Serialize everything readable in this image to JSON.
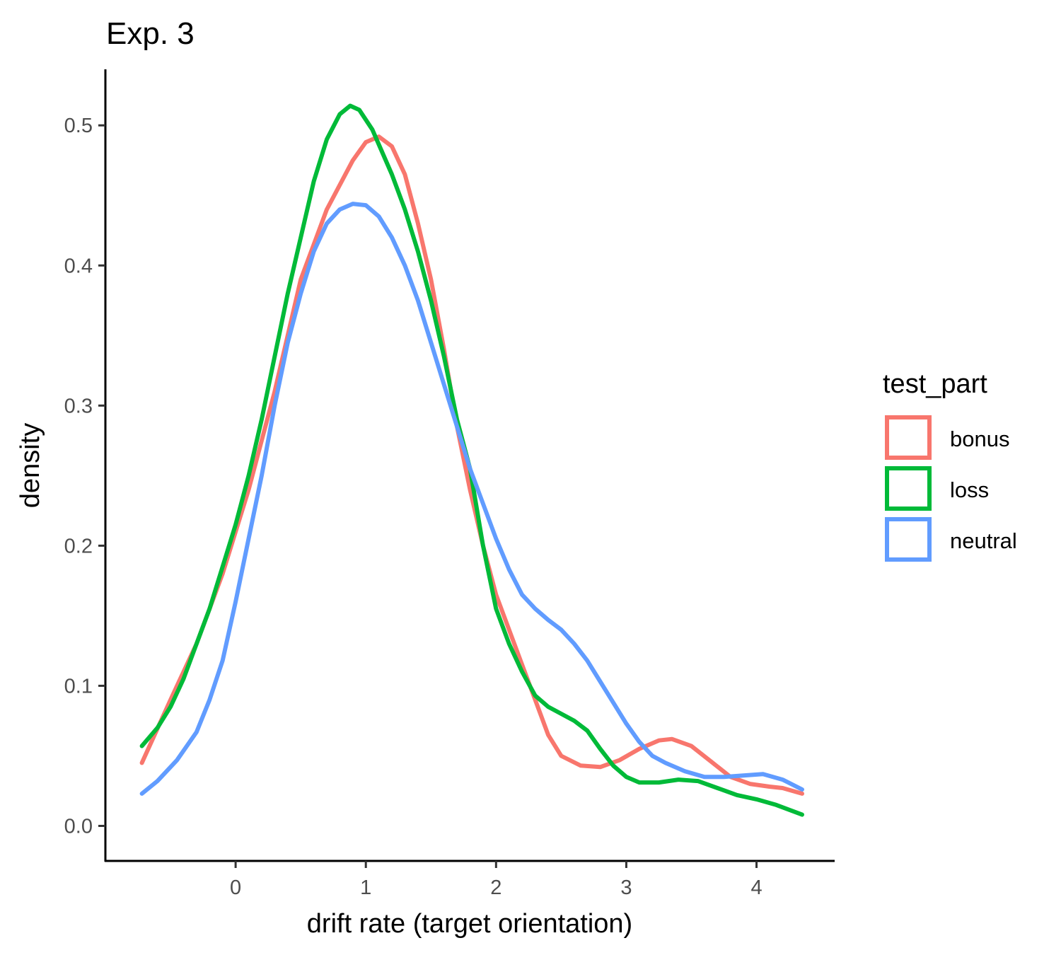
{
  "chart_data": {
    "type": "line",
    "title": "Exp. 3",
    "xlabel": "drift rate (target orientation)",
    "ylabel": "density",
    "xlim": [
      -1.0,
      4.6
    ],
    "ylim": [
      -0.025,
      0.54
    ],
    "x_ticks": [
      0,
      1,
      2,
      3,
      4
    ],
    "x_tick_labels": [
      "0",
      "1",
      "2",
      "3",
      "4"
    ],
    "y_ticks": [
      0.0,
      0.1,
      0.2,
      0.3,
      0.4,
      0.5
    ],
    "y_tick_labels": [
      "0.0",
      "0.1",
      "0.2",
      "0.3",
      "0.4",
      "0.5"
    ],
    "grid": false,
    "legend": {
      "title": "test_part",
      "position": "right"
    },
    "series": [
      {
        "name": "bonus",
        "color": "#F8766D",
        "points": [
          [
            -0.72,
            0.045
          ],
          [
            -0.5,
            0.09
          ],
          [
            -0.3,
            0.13
          ],
          [
            -0.1,
            0.18
          ],
          [
            0.1,
            0.24
          ],
          [
            0.3,
            0.31
          ],
          [
            0.5,
            0.39
          ],
          [
            0.7,
            0.44
          ],
          [
            0.9,
            0.475
          ],
          [
            1.0,
            0.488
          ],
          [
            1.1,
            0.492
          ],
          [
            1.2,
            0.485
          ],
          [
            1.3,
            0.465
          ],
          [
            1.4,
            0.43
          ],
          [
            1.5,
            0.39
          ],
          [
            1.6,
            0.34
          ],
          [
            1.7,
            0.285
          ],
          [
            1.8,
            0.24
          ],
          [
            1.9,
            0.2
          ],
          [
            2.0,
            0.165
          ],
          [
            2.1,
            0.14
          ],
          [
            2.2,
            0.115
          ],
          [
            2.3,
            0.09
          ],
          [
            2.4,
            0.065
          ],
          [
            2.5,
            0.05
          ],
          [
            2.65,
            0.043
          ],
          [
            2.8,
            0.042
          ],
          [
            2.95,
            0.047
          ],
          [
            3.1,
            0.055
          ],
          [
            3.25,
            0.061
          ],
          [
            3.35,
            0.062
          ],
          [
            3.5,
            0.057
          ],
          [
            3.65,
            0.046
          ],
          [
            3.8,
            0.035
          ],
          [
            3.95,
            0.03
          ],
          [
            4.1,
            0.028
          ],
          [
            4.2,
            0.027
          ],
          [
            4.35,
            0.023
          ]
        ]
      },
      {
        "name": "loss",
        "color": "#00BA38",
        "points": [
          [
            -0.72,
            0.057
          ],
          [
            -0.6,
            0.07
          ],
          [
            -0.5,
            0.085
          ],
          [
            -0.4,
            0.105
          ],
          [
            -0.3,
            0.13
          ],
          [
            -0.2,
            0.155
          ],
          [
            -0.1,
            0.185
          ],
          [
            0.0,
            0.215
          ],
          [
            0.1,
            0.25
          ],
          [
            0.2,
            0.29
          ],
          [
            0.3,
            0.335
          ],
          [
            0.4,
            0.38
          ],
          [
            0.5,
            0.42
          ],
          [
            0.6,
            0.46
          ],
          [
            0.7,
            0.49
          ],
          [
            0.8,
            0.508
          ],
          [
            0.88,
            0.514
          ],
          [
            0.95,
            0.511
          ],
          [
            1.05,
            0.497
          ],
          [
            1.2,
            0.465
          ],
          [
            1.3,
            0.44
          ],
          [
            1.4,
            0.41
          ],
          [
            1.5,
            0.375
          ],
          [
            1.6,
            0.335
          ],
          [
            1.7,
            0.29
          ],
          [
            1.8,
            0.255
          ],
          [
            1.9,
            0.2
          ],
          [
            2.0,
            0.155
          ],
          [
            2.1,
            0.13
          ],
          [
            2.2,
            0.11
          ],
          [
            2.3,
            0.093
          ],
          [
            2.4,
            0.085
          ],
          [
            2.5,
            0.08
          ],
          [
            2.6,
            0.075
          ],
          [
            2.7,
            0.068
          ],
          [
            2.8,
            0.055
          ],
          [
            2.9,
            0.043
          ],
          [
            3.0,
            0.035
          ],
          [
            3.1,
            0.031
          ],
          [
            3.25,
            0.031
          ],
          [
            3.4,
            0.033
          ],
          [
            3.55,
            0.032
          ],
          [
            3.7,
            0.027
          ],
          [
            3.85,
            0.022
          ],
          [
            4.0,
            0.019
          ],
          [
            4.15,
            0.015
          ],
          [
            4.35,
            0.008
          ]
        ]
      },
      {
        "name": "neutral",
        "color": "#619CFF",
        "points": [
          [
            -0.72,
            0.023
          ],
          [
            -0.6,
            0.032
          ],
          [
            -0.45,
            0.047
          ],
          [
            -0.3,
            0.067
          ],
          [
            -0.2,
            0.09
          ],
          [
            -0.1,
            0.118
          ],
          [
            0.0,
            0.16
          ],
          [
            0.1,
            0.205
          ],
          [
            0.2,
            0.25
          ],
          [
            0.3,
            0.3
          ],
          [
            0.4,
            0.345
          ],
          [
            0.5,
            0.38
          ],
          [
            0.6,
            0.41
          ],
          [
            0.7,
            0.43
          ],
          [
            0.8,
            0.44
          ],
          [
            0.9,
            0.444
          ],
          [
            1.0,
            0.443
          ],
          [
            1.1,
            0.435
          ],
          [
            1.2,
            0.42
          ],
          [
            1.3,
            0.4
          ],
          [
            1.4,
            0.375
          ],
          [
            1.5,
            0.345
          ],
          [
            1.6,
            0.315
          ],
          [
            1.7,
            0.285
          ],
          [
            1.8,
            0.255
          ],
          [
            1.9,
            0.23
          ],
          [
            2.0,
            0.205
          ],
          [
            2.1,
            0.183
          ],
          [
            2.2,
            0.165
          ],
          [
            2.3,
            0.155
          ],
          [
            2.4,
            0.147
          ],
          [
            2.5,
            0.14
          ],
          [
            2.6,
            0.13
          ],
          [
            2.7,
            0.118
          ],
          [
            2.8,
            0.103
          ],
          [
            2.9,
            0.088
          ],
          [
            3.0,
            0.073
          ],
          [
            3.1,
            0.06
          ],
          [
            3.2,
            0.05
          ],
          [
            3.3,
            0.045
          ],
          [
            3.45,
            0.039
          ],
          [
            3.6,
            0.035
          ],
          [
            3.75,
            0.035
          ],
          [
            3.9,
            0.036
          ],
          [
            4.05,
            0.037
          ],
          [
            4.2,
            0.033
          ],
          [
            4.35,
            0.026
          ]
        ]
      }
    ]
  }
}
